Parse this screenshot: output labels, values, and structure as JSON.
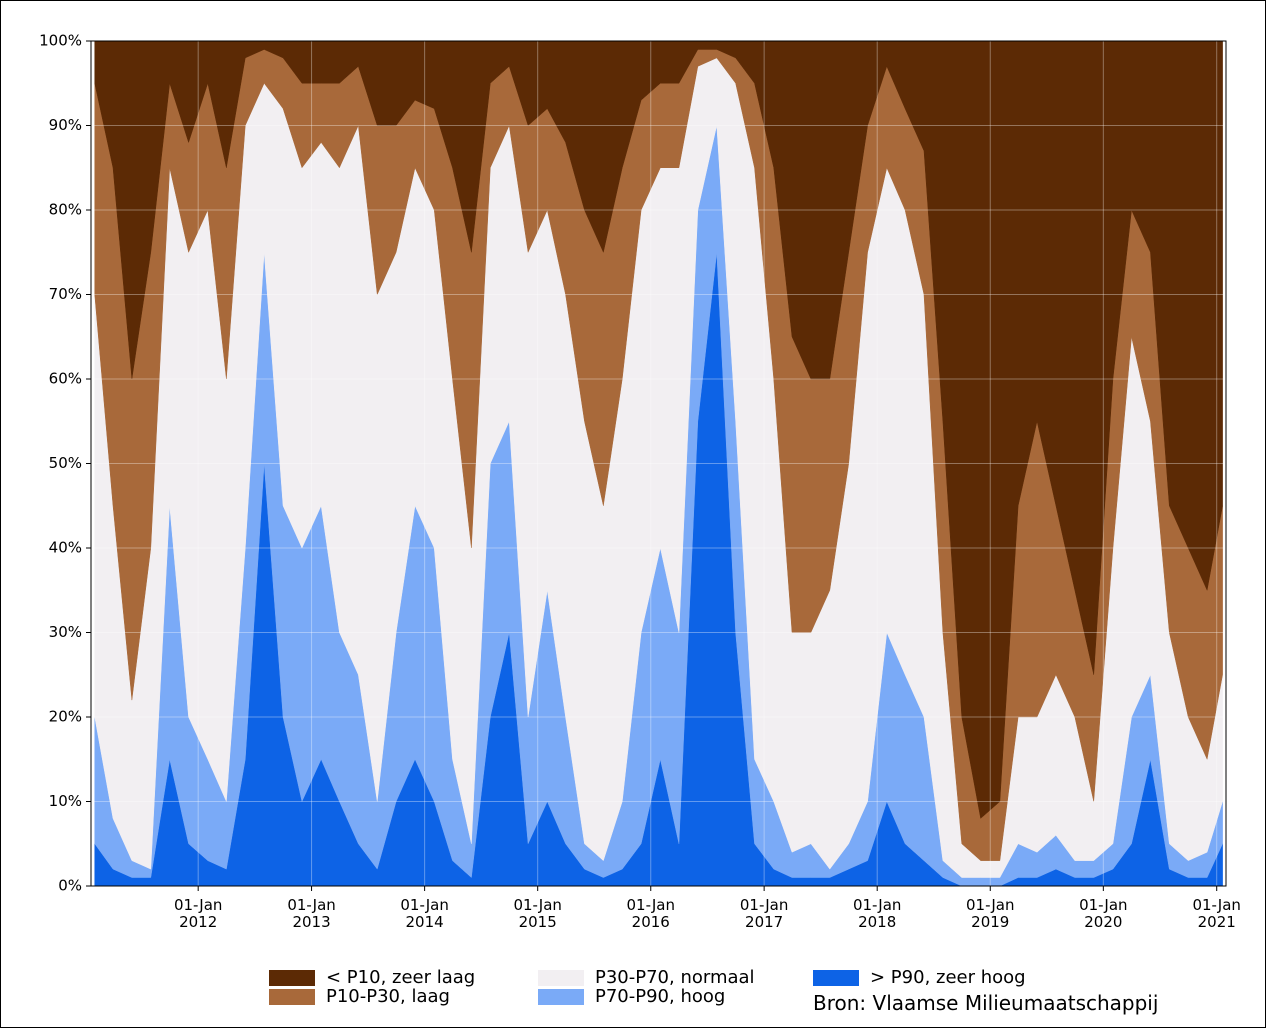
{
  "chart_data": {
    "type": "stacked_area",
    "source": "Bron: Vlaamse Milieumaatschappij",
    "x": [
      "2011-02-01",
      "2011-04-01",
      "2011-06-01",
      "2011-08-01",
      "2011-10-01",
      "2011-12-01",
      "2012-02-01",
      "2012-04-01",
      "2012-06-01",
      "2012-08-01",
      "2012-10-01",
      "2012-12-01",
      "2013-02-01",
      "2013-04-01",
      "2013-06-01",
      "2013-08-01",
      "2013-10-01",
      "2013-12-01",
      "2014-02-01",
      "2014-04-01",
      "2014-06-01",
      "2014-08-01",
      "2014-10-01",
      "2014-12-01",
      "2015-02-01",
      "2015-04-01",
      "2015-06-01",
      "2015-08-01",
      "2015-10-01",
      "2015-12-01",
      "2016-02-01",
      "2016-04-01",
      "2016-06-01",
      "2016-08-01",
      "2016-10-01",
      "2016-12-01",
      "2017-02-01",
      "2017-04-01",
      "2017-06-01",
      "2017-08-01",
      "2017-10-01",
      "2017-12-01",
      "2018-02-01",
      "2018-04-01",
      "2018-06-01",
      "2018-08-01",
      "2018-10-01",
      "2018-12-01",
      "2019-02-01",
      "2019-04-01",
      "2019-06-01",
      "2019-08-01",
      "2019-10-01",
      "2019-12-01",
      "2020-02-01",
      "2020-04-01",
      "2020-06-01",
      "2020-08-01",
      "2020-10-01",
      "2020-12-01",
      "2021-01-20"
    ],
    "series": [
      {
        "name": "> P90, zeer hoog",
        "color": "#0d63e6",
        "values": [
          5,
          2,
          1,
          1,
          15,
          5,
          3,
          2,
          15,
          50,
          20,
          10,
          15,
          10,
          5,
          2,
          10,
          15,
          10,
          3,
          1,
          20,
          30,
          5,
          10,
          5,
          2,
          1,
          2,
          5,
          15,
          5,
          55,
          75,
          30,
          5,
          2,
          1,
          1,
          1,
          2,
          3,
          10,
          5,
          3,
          1,
          0,
          0,
          0,
          1,
          1,
          2,
          1,
          1,
          2,
          5,
          15,
          2,
          1,
          1,
          5
        ]
      },
      {
        "name": "P70-P90, hoog",
        "color": "#7aaaf7",
        "values": [
          15,
          6,
          2,
          1,
          30,
          15,
          12,
          8,
          25,
          25,
          25,
          30,
          30,
          20,
          20,
          8,
          20,
          30,
          30,
          12,
          4,
          30,
          25,
          15,
          25,
          15,
          3,
          2,
          8,
          25,
          25,
          25,
          25,
          15,
          25,
          10,
          8,
          3,
          4,
          1,
          3,
          7,
          20,
          20,
          17,
          2,
          1,
          1,
          1,
          4,
          3,
          4,
          2,
          2,
          3,
          15,
          10,
          3,
          2,
          3,
          5
        ]
      },
      {
        "name": "P30-P70, normaal",
        "color": "#f2eff2",
        "values": [
          50,
          37,
          19,
          38,
          40,
          55,
          65,
          50,
          50,
          20,
          47,
          45,
          43,
          55,
          65,
          60,
          45,
          40,
          40,
          45,
          35,
          35,
          35,
          55,
          45,
          50,
          50,
          42,
          50,
          50,
          45,
          55,
          17,
          8,
          40,
          70,
          50,
          26,
          25,
          33,
          45,
          65,
          55,
          55,
          50,
          27,
          4,
          2,
          2,
          15,
          16,
          19,
          17,
          7,
          35,
          45,
          30,
          25,
          17,
          11,
          15
        ]
      },
      {
        "name": "P10-P30, laag",
        "color": "#a8693a",
        "values": [
          25,
          40,
          38,
          35,
          10,
          13,
          15,
          25,
          8,
          4,
          6,
          10,
          7,
          10,
          7,
          20,
          15,
          8,
          12,
          25,
          35,
          10,
          7,
          15,
          12,
          18,
          25,
          30,
          25,
          13,
          10,
          10,
          2,
          1,
          3,
          10,
          25,
          35,
          30,
          25,
          25,
          15,
          12,
          12,
          17,
          25,
          15,
          5,
          7,
          25,
          35,
          20,
          15,
          15,
          20,
          15,
          20,
          15,
          20,
          20,
          20
        ]
      },
      {
        "name": "< P10, zeer laag",
        "color": "#5c2a05",
        "values": [
          5,
          15,
          40,
          25,
          5,
          12,
          5,
          15,
          2,
          1,
          2,
          5,
          5,
          5,
          3,
          10,
          10,
          7,
          8,
          15,
          25,
          5,
          3,
          10,
          8,
          12,
          20,
          25,
          15,
          7,
          5,
          5,
          1,
          1,
          2,
          5,
          15,
          35,
          40,
          40,
          25,
          10,
          3,
          8,
          13,
          45,
          80,
          92,
          90,
          55,
          45,
          55,
          65,
          75,
          40,
          20,
          25,
          55,
          60,
          65,
          55
        ]
      }
    ],
    "xlim": [
      "2011-01-20",
      "2021-01-31"
    ],
    "xticks": [
      {
        "value": "2012-01-01",
        "label": "01-Jan\n2012"
      },
      {
        "value": "2013-01-01",
        "label": "01-Jan\n2013"
      },
      {
        "value": "2014-01-01",
        "label": "01-Jan\n2014"
      },
      {
        "value": "2015-01-01",
        "label": "01-Jan\n2015"
      },
      {
        "value": "2016-01-01",
        "label": "01-Jan\n2016"
      },
      {
        "value": "2017-01-01",
        "label": "01-Jan\n2017"
      },
      {
        "value": "2018-01-01",
        "label": "01-Jan\n2018"
      },
      {
        "value": "2019-01-01",
        "label": "01-Jan\n2019"
      },
      {
        "value": "2020-01-01",
        "label": "01-Jan\n2020"
      },
      {
        "value": "2021-01-01",
        "label": "01-Jan\n2021"
      }
    ],
    "ylim": [
      0,
      100
    ],
    "yticks": [
      {
        "value": 0,
        "label": "0%"
      },
      {
        "value": 10,
        "label": "10%"
      },
      {
        "value": 20,
        "label": "20%"
      },
      {
        "value": 30,
        "label": "30%"
      },
      {
        "value": 40,
        "label": "40%"
      },
      {
        "value": 50,
        "label": "50%"
      },
      {
        "value": 60,
        "label": "60%"
      },
      {
        "value": 70,
        "label": "70%"
      },
      {
        "value": 80,
        "label": "80%"
      },
      {
        "value": 90,
        "label": "90%"
      },
      {
        "value": 100,
        "label": "100%"
      }
    ],
    "grid": true
  }
}
